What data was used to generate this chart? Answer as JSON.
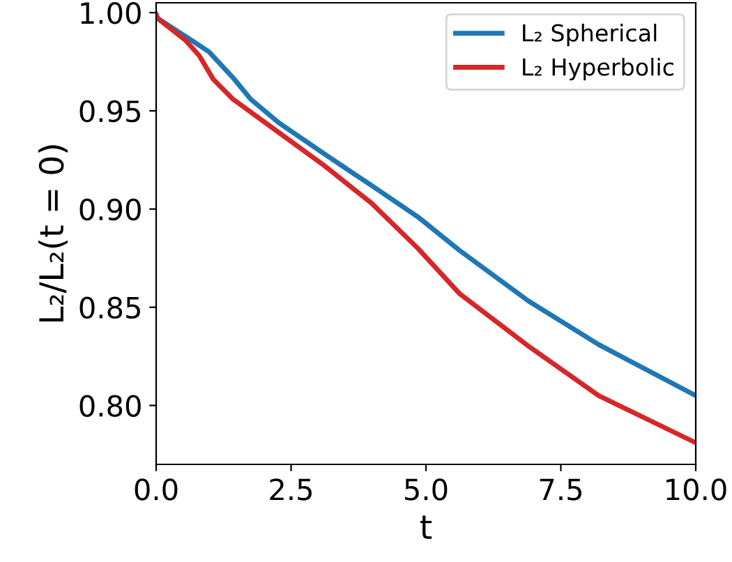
{
  "chart_data": {
    "type": "line",
    "xlabel": "t",
    "ylabel": "L₂/L₂(t = 0)",
    "xlim": [
      0,
      10
    ],
    "ylim": [
      0.77,
      1.005
    ],
    "xticks": [
      {
        "value": 0,
        "label": "0.0"
      },
      2.5,
      {
        "value": 5,
        "label": "5.0"
      },
      7.5,
      {
        "value": 10,
        "label": "10.0"
      }
    ],
    "yticks": [
      {
        "value": 0.8,
        "label": "0.80"
      },
      0.85,
      {
        "value": 0.9,
        "label": "0.90"
      },
      0.95,
      {
        "value": 1.0,
        "label": "1.00"
      }
    ],
    "grid": false,
    "legend": "top right",
    "line_style": "solid",
    "marker": "none",
    "series": [
      {
        "name": "L₂ Spherical",
        "color": "#1f77b4",
        "x": [
          0,
          0.03,
          0.54,
          0.98,
          1.42,
          1.75,
          2.27,
          3.12,
          3.99,
          4.85,
          5.62,
          6.91,
          8.2,
          10
        ],
        "values": [
          0.999,
          0.997,
          0.988,
          0.98,
          0.967,
          0.956,
          0.944,
          0.928,
          0.912,
          0.896,
          0.879,
          0.853,
          0.831,
          0.805
        ]
      },
      {
        "name": "L₂ Hyperbolic",
        "color": "#d62728",
        "x": [
          0,
          0.03,
          0.54,
          0.8,
          1.06,
          1.42,
          2.27,
          3.12,
          3.99,
          4.85,
          5.62,
          6.91,
          8.2,
          10
        ],
        "values": [
          0.999,
          0.997,
          0.986,
          0.978,
          0.966,
          0.956,
          0.939,
          0.922,
          0.903,
          0.88,
          0.857,
          0.83,
          0.805,
          0.781
        ]
      }
    ]
  }
}
